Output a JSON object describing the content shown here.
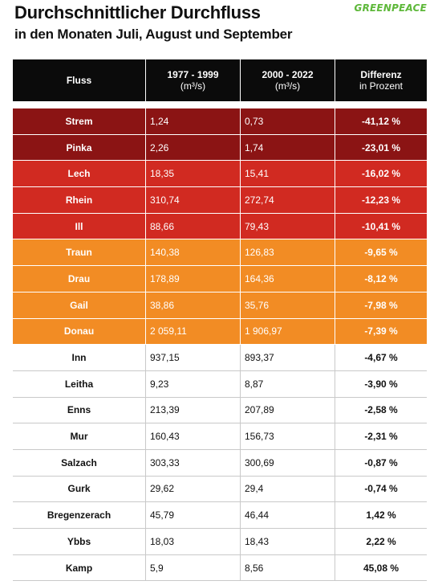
{
  "header": {
    "title": "Durchschnittlicher Durchfluss",
    "subtitle": "in den Monaten Juli, August und September",
    "logo": "GREENPEACE"
  },
  "colors": {
    "dark_red": "#8b1414",
    "red": "#d12a21",
    "orange": "#f28c24",
    "white": "#ffffff",
    "header_bg": "#0b0b0b",
    "logo_green": "#5eb83a"
  },
  "chart_data": {
    "type": "table",
    "columns": [
      {
        "label": "Fluss",
        "sub": ""
      },
      {
        "label": "1977 - 1999",
        "sub": "(m³/s)"
      },
      {
        "label": "2000 - 2022",
        "sub": "(m³/s)"
      },
      {
        "label": "Differenz",
        "sub": "in Prozent"
      }
    ],
    "rows": [
      {
        "name": "Strem",
        "v1": "1,24",
        "v2": "0,73",
        "diff": "-41,12 %",
        "tier": "dark"
      },
      {
        "name": "Pinka",
        "v1": "2,26",
        "v2": "1,74",
        "diff": "-23,01 %",
        "tier": "dark"
      },
      {
        "name": "Lech",
        "v1": "18,35",
        "v2": "15,41",
        "diff": "-16,02 %",
        "tier": "red"
      },
      {
        "name": "Rhein",
        "v1": "310,74",
        "v2": "272,74",
        "diff": "-12,23 %",
        "tier": "red"
      },
      {
        "name": "Ill",
        "v1": "88,66",
        "v2": "79,43",
        "diff": "-10,41 %",
        "tier": "red"
      },
      {
        "name": "Traun",
        "v1": "140,38",
        "v2": "126,83",
        "diff": "-9,65 %",
        "tier": "orange"
      },
      {
        "name": "Drau",
        "v1": "178,89",
        "v2": "164,36",
        "diff": "-8,12 %",
        "tier": "orange"
      },
      {
        "name": "Gail",
        "v1": "38,86",
        "v2": "35,76",
        "diff": "-7,98 %",
        "tier": "orange"
      },
      {
        "name": "Donau",
        "v1": "2 059,11",
        "v2": "1 906,97",
        "diff": "-7,39 %",
        "tier": "orange"
      },
      {
        "name": "Inn",
        "v1": "937,15",
        "v2": "893,37",
        "diff": "-4,67 %",
        "tier": "white"
      },
      {
        "name": "Leitha",
        "v1": "9,23",
        "v2": "8,87",
        "diff": "-3,90 %",
        "tier": "white"
      },
      {
        "name": "Enns",
        "v1": "213,39",
        "v2": "207,89",
        "diff": "-2,58 %",
        "tier": "white"
      },
      {
        "name": "Mur",
        "v1": "160,43",
        "v2": "156,73",
        "diff": "-2,31 %",
        "tier": "white"
      },
      {
        "name": "Salzach",
        "v1": "303,33",
        "v2": "300,69",
        "diff": "-0,87 %",
        "tier": "white"
      },
      {
        "name": "Gurk",
        "v1": "29,62",
        "v2": "29,4",
        "diff": "-0,74 %",
        "tier": "white"
      },
      {
        "name": "Bregenzerach",
        "v1": "45,79",
        "v2": "46,44",
        "diff": "1,42 %",
        "tier": "white"
      },
      {
        "name": "Ybbs",
        "v1": "18,03",
        "v2": "18,43",
        "diff": "2,22 %",
        "tier": "white"
      },
      {
        "name": "Kamp",
        "v1": "5,9",
        "v2": "8,56",
        "diff": "45,08 %",
        "tier": "white"
      }
    ]
  }
}
